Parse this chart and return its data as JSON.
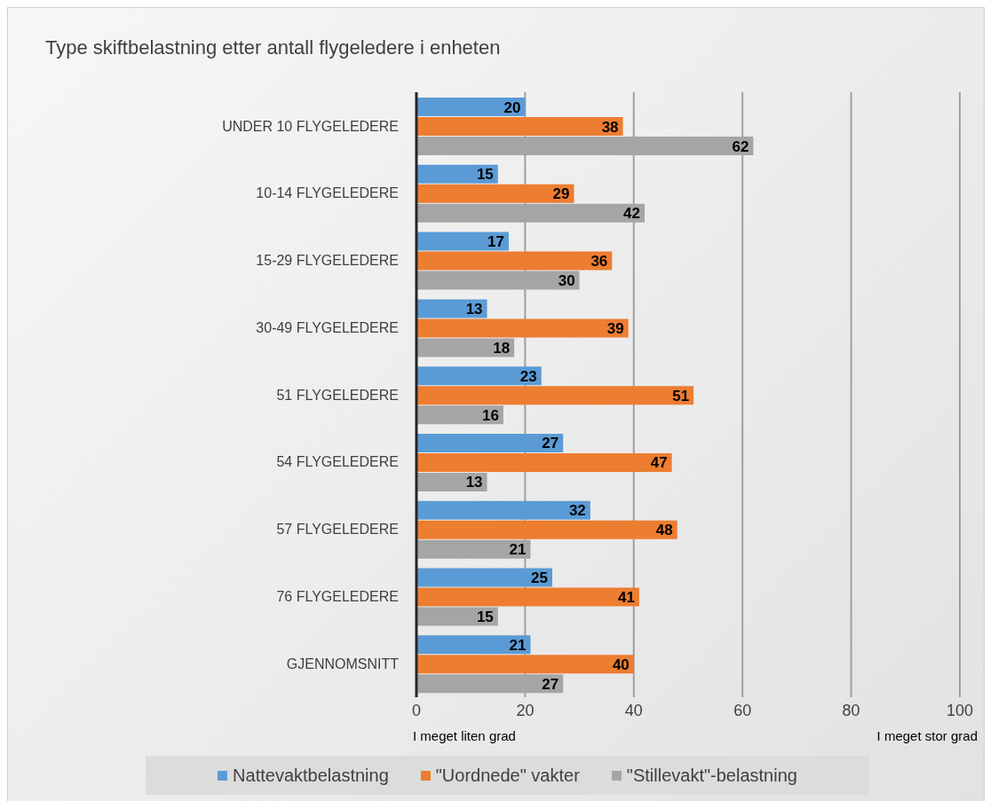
{
  "chart_data": {
    "type": "bar",
    "orientation": "horizontal",
    "title": "Type skiftbelastning etter antall flygeledere i enheten",
    "categories": [
      "UNDER 10 FLYGELEDERE",
      "10-14 FLYGELEDERE",
      "15-29 FLYGELEDERE",
      "30-49 FLYGELEDERE",
      "51 FLYGELEDERE",
      "54 FLYGELEDERE",
      "57 FLYGELEDERE",
      "76 FLYGELEDERE",
      "GJENNOMSNITT"
    ],
    "series": [
      {
        "name": "Nattevaktbelastning",
        "color": "#5b9bd5",
        "values": [
          20,
          15,
          17,
          13,
          23,
          27,
          32,
          25,
          21
        ]
      },
      {
        "name": "\"Uordnede\" vakter",
        "color": "#ed7d31",
        "values": [
          38,
          29,
          36,
          39,
          51,
          47,
          48,
          41,
          40
        ]
      },
      {
        "name": "\"Stillevakt\"-belastning",
        "color": "#a5a5a5",
        "values": [
          62,
          42,
          30,
          18,
          16,
          13,
          21,
          15,
          27
        ]
      }
    ],
    "xlim": [
      0,
      100
    ],
    "xticks": [
      0,
      20,
      40,
      60,
      80,
      100
    ],
    "grid": "x",
    "legend": "bottom",
    "data_labels": true,
    "annotations": [
      "I meget liten grad",
      "I meget stor grad"
    ]
  }
}
